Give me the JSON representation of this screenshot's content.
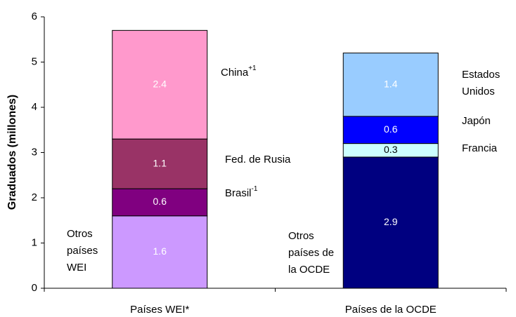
{
  "chart_data": {
    "type": "stacked_bar",
    "y_label": "Graduados (millones)",
    "ylim": [
      0,
      6
    ],
    "yticks": [
      0,
      1,
      2,
      3,
      4,
      5,
      6
    ],
    "bars": [
      {
        "category": "Países WEI*",
        "segments": [
          {
            "name": [
              "Otros",
              "países",
              "WEI"
            ],
            "value": 1.6,
            "color": "#cc99ff",
            "label_color": "#ffffff"
          },
          {
            "name": [
              "Brasil"
            ],
            "name_sup": "-1",
            "value": 0.6,
            "color": "#800080",
            "label_color": "#ffffff"
          },
          {
            "name": [
              "Fed. de Rusia"
            ],
            "value": 1.1,
            "color": "#993366",
            "label_color": "#ffffff"
          },
          {
            "name": [
              "China"
            ],
            "name_sup": "+1",
            "value": 2.4,
            "color": "#ff99cc",
            "label_color": "#ffffff"
          }
        ]
      },
      {
        "category": "Países de la OCDE",
        "segments": [
          {
            "name": [
              "Otros",
              "países de",
              "la OCDE"
            ],
            "value": 2.9,
            "color": "#000080",
            "label_color": "#ffffff"
          },
          {
            "name": [
              "Francia"
            ],
            "value": 0.3,
            "color": "#ccffff",
            "label_color": "#000000"
          },
          {
            "name": [
              "Japón"
            ],
            "value": 0.6,
            "color": "#0000ff",
            "label_color": "#ffffff"
          },
          {
            "name": [
              "Estados",
              "Unidos"
            ],
            "value": 1.4,
            "color": "#99ccff",
            "label_color": "#ffffff"
          }
        ]
      }
    ]
  }
}
